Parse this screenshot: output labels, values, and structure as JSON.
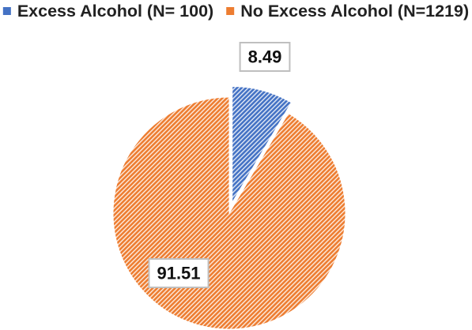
{
  "chart_data": {
    "type": "pie",
    "title": "",
    "legend_position": "top",
    "exploded": true,
    "series": [
      {
        "name": "Excess Alcohol (N= 100)",
        "value": 8.49,
        "label": "8.49",
        "color": "#4472c4",
        "pattern": "diagonal-stripes"
      },
      {
        "name": "No Excess Alcohol (N=1219)",
        "value": 91.51,
        "label": "91.51",
        "color": "#ed7d31",
        "pattern": "diagonal-stripes"
      }
    ]
  }
}
